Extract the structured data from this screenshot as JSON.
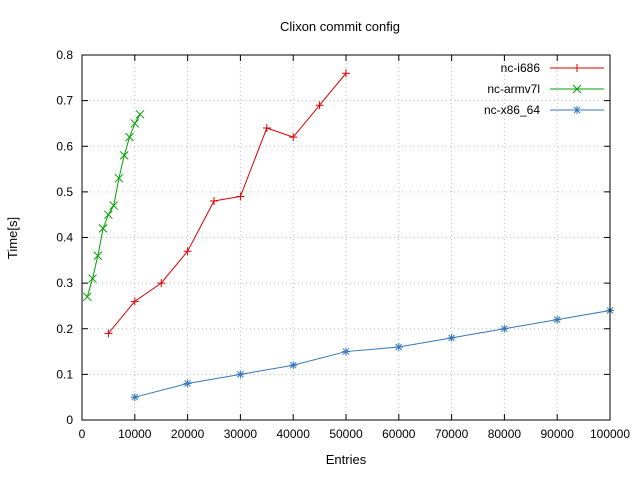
{
  "chart_data": {
    "type": "line",
    "title": "Clixon commit config",
    "xlabel": "Entries",
    "ylabel": "Time[s]",
    "xlim": [
      0,
      100000
    ],
    "ylim": [
      0,
      0.8
    ],
    "grid": true,
    "legend_position": "top-right",
    "xticks": [
      0,
      10000,
      20000,
      30000,
      40000,
      50000,
      60000,
      70000,
      80000,
      90000,
      100000
    ],
    "xtick_labels": [
      "0",
      "10000",
      "20000",
      "30000",
      "40000",
      "50000",
      "60000",
      "70000",
      "80000",
      "90000",
      "100000"
    ],
    "yticks": [
      0,
      0.1,
      0.2,
      0.3,
      0.4,
      0.5,
      0.6,
      0.7,
      0.8
    ],
    "ytick_labels": [
      "0",
      "0.1",
      "0.2",
      "0.3",
      "0.4",
      "0.5",
      "0.6",
      "0.7",
      "0.8"
    ],
    "colors": {
      "grid": "#bbbbbb",
      "border": "#000000",
      "text": "#000000"
    },
    "series": [
      {
        "name": "nc-i686",
        "color": "#dd0000",
        "marker": "plus",
        "x": [
          5000,
          10000,
          15000,
          20000,
          25000,
          30000,
          35000,
          40000,
          45000,
          50000
        ],
        "y": [
          0.19,
          0.26,
          0.3,
          0.37,
          0.48,
          0.49,
          0.64,
          0.62,
          0.69,
          0.76
        ]
      },
      {
        "name": "nc-armv7l",
        "color": "#00a000",
        "marker": "x",
        "x": [
          1000,
          2000,
          3000,
          4000,
          5000,
          6000,
          7000,
          8000,
          9000,
          10000,
          11000
        ],
        "y": [
          0.27,
          0.31,
          0.36,
          0.42,
          0.45,
          0.47,
          0.53,
          0.58,
          0.62,
          0.65,
          0.67
        ]
      },
      {
        "name": "nc-x86_64",
        "color": "#3377bb",
        "marker": "asterisk",
        "x": [
          10000,
          20000,
          30000,
          40000,
          50000,
          60000,
          70000,
          80000,
          90000,
          100000
        ],
        "y": [
          0.05,
          0.08,
          0.1,
          0.12,
          0.15,
          0.16,
          0.18,
          0.2,
          0.22,
          0.24
        ]
      }
    ]
  }
}
